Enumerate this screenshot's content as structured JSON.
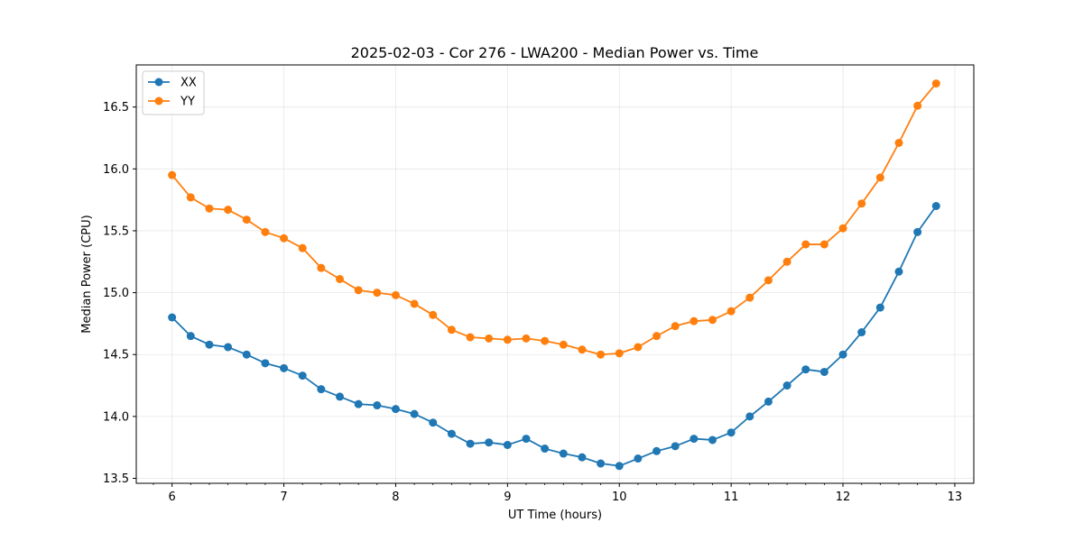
{
  "chart_data": {
    "type": "line",
    "title": "2025-02-03 - Cor 276 - LWA200 - Median Power vs. Time",
    "xlabel": "UT Time (hours)",
    "ylabel": "Median Power (CPU)",
    "xlim": [
      5.68,
      13.17
    ],
    "ylim": [
      13.46,
      16.84
    ],
    "grid": true,
    "legend_position": "top-left",
    "x_ticks": [
      6,
      7,
      8,
      9,
      10,
      11,
      12,
      13
    ],
    "y_ticks": [
      13.5,
      14.0,
      14.5,
      15.0,
      15.5,
      16.0,
      16.5
    ],
    "x_tick_labels": [
      "6",
      "7",
      "8",
      "9",
      "10",
      "11",
      "12",
      "13"
    ],
    "y_tick_labels": [
      "13.5",
      "14.0",
      "14.5",
      "15.0",
      "15.5",
      "16.0",
      "16.5"
    ],
    "x": [
      6.0,
      6.1667,
      6.3333,
      6.5,
      6.6667,
      6.8333,
      7.0,
      7.1667,
      7.3333,
      7.5,
      7.6667,
      7.8333,
      8.0,
      8.1667,
      8.3333,
      8.5,
      8.6667,
      8.8333,
      9.0,
      9.1667,
      9.3333,
      9.5,
      9.6667,
      9.8333,
      10.0,
      10.1667,
      10.3333,
      10.5,
      10.6667,
      10.8333,
      11.0,
      11.1667,
      11.3333,
      11.5,
      11.6667,
      11.8333,
      12.0,
      12.1667,
      12.3333,
      12.5,
      12.6667,
      12.8333
    ],
    "series": [
      {
        "name": "XX",
        "color": "#1f77b4",
        "values": [
          14.8,
          14.65,
          14.58,
          14.56,
          14.5,
          14.43,
          14.39,
          14.33,
          14.22,
          14.16,
          14.1,
          14.09,
          14.06,
          14.02,
          13.95,
          13.86,
          13.78,
          13.79,
          13.77,
          13.82,
          13.74,
          13.7,
          13.67,
          13.62,
          13.6,
          13.66,
          13.72,
          13.76,
          13.82,
          13.81,
          13.87,
          14.0,
          14.12,
          14.25,
          14.38,
          14.36,
          14.5,
          14.68,
          14.88,
          15.17,
          15.49,
          15.7
        ]
      },
      {
        "name": "YY",
        "color": "#ff7f0e",
        "values": [
          15.95,
          15.77,
          15.68,
          15.67,
          15.59,
          15.49,
          15.44,
          15.36,
          15.2,
          15.11,
          15.02,
          15.0,
          14.98,
          14.91,
          14.82,
          14.7,
          14.64,
          14.63,
          14.62,
          14.63,
          14.61,
          14.58,
          14.54,
          14.5,
          14.51,
          14.56,
          14.65,
          14.73,
          14.77,
          14.78,
          14.85,
          14.96,
          15.1,
          15.25,
          15.39,
          15.39,
          15.52,
          15.72,
          15.93,
          16.21,
          16.51,
          16.69
        ]
      }
    ]
  }
}
